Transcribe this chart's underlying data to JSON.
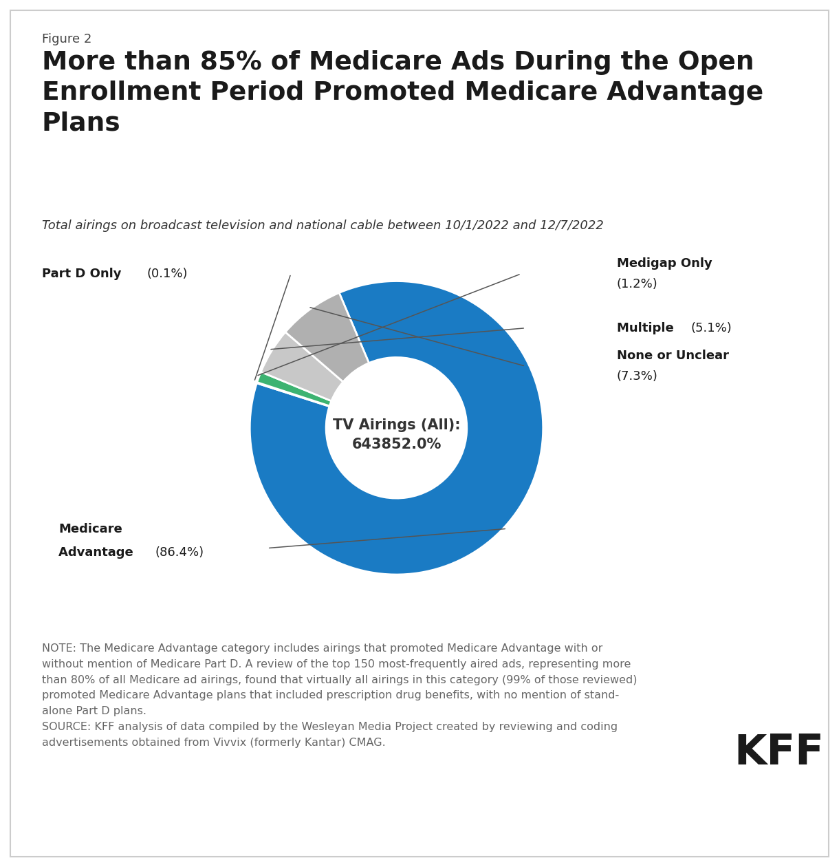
{
  "figure_label": "Figure 2",
  "title": "More than 85% of Medicare Ads During the Open\nEnrollment Period Promoted Medicare Advantage\nPlans",
  "subtitle": "Total airings on broadcast television and national cable between 10/1/2022 and 12/7/2022",
  "center_label_line1": "TV Airings (All):",
  "center_label_line2": "643852.0%",
  "slices": [
    {
      "label": "Medicare Advantage",
      "pct": 86.4,
      "color": "#1A7BC4"
    },
    {
      "label": "Part D Only",
      "pct": 0.1,
      "color": "#E07020"
    },
    {
      "label": "Medigap Only",
      "pct": 1.2,
      "color": "#3CB371"
    },
    {
      "label": "Multiple",
      "pct": 5.1,
      "color": "#C8C8C8"
    },
    {
      "label": "None or Unclear",
      "pct": 7.3,
      "color": "#B0B0B0"
    }
  ],
  "note_text": "NOTE: The Medicare Advantage category includes airings that promoted Medicare Advantage with or\nwithout mention of Medicare Part D. A review of the top 150 most-frequently aired ads, representing more\nthan 80% of all Medicare ad airings, found that virtually all airings in this category (99% of those reviewed)\npromoted Medicare Advantage plans that included prescription drug benefits, with no mention of stand-\nalone Part D plans.\nSOURCE: KFF analysis of data compiled by the Wesleyan Media Project created by reviewing and coding\nadvertisements obtained from Vivvix (formerly Kantar) CMAG.",
  "kff_label": "KFF",
  "background_color": "#ffffff",
  "border_color": "#cccccc",
  "text_color": "#333333",
  "note_color": "#666666"
}
